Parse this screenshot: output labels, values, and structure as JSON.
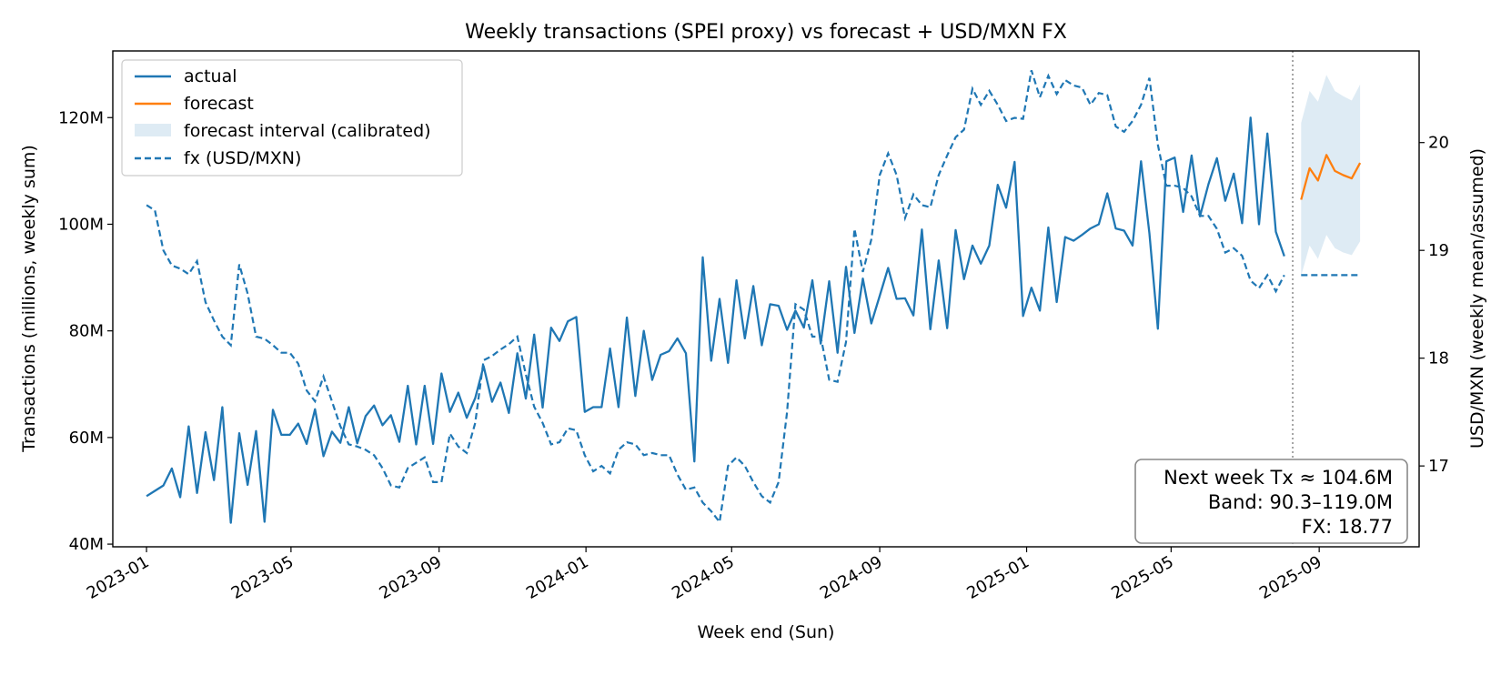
{
  "chart_data": {
    "type": "line",
    "title": "Weekly transactions (SPEI proxy) vs forecast + USD/MXN FX",
    "xlabel": "Week end (Sun)",
    "ylabel": "Transactions (millions, weekly sum)",
    "y2label": "USD/MXN (weekly mean/assumed)",
    "xlim": [
      "2022-12-04",
      "2025-11-23"
    ],
    "ylim": [
      39.5,
      132.5
    ],
    "y2lim": [
      16.25,
      20.85
    ],
    "x_ticks": [
      {
        "date": "2023-01-01",
        "label": "2023-01"
      },
      {
        "date": "2023-05-01",
        "label": "2023-05"
      },
      {
        "date": "2023-09-01",
        "label": "2023-09"
      },
      {
        "date": "2024-01-01",
        "label": "2024-01"
      },
      {
        "date": "2024-05-01",
        "label": "2024-05"
      },
      {
        "date": "2024-09-01",
        "label": "2024-09"
      },
      {
        "date": "2025-01-01",
        "label": "2025-01"
      },
      {
        "date": "2025-05-01",
        "label": "2025-05"
      },
      {
        "date": "2025-09-01",
        "label": "2025-09"
      }
    ],
    "y_ticks": [
      {
        "value": 40,
        "label": "40M"
      },
      {
        "value": 60,
        "label": "60M"
      },
      {
        "value": 80,
        "label": "80M"
      },
      {
        "value": 100,
        "label": "100M"
      },
      {
        "value": 120,
        "label": "120M"
      }
    ],
    "y2_ticks": [
      {
        "value": 17,
        "label": "17"
      },
      {
        "value": 18,
        "label": "18"
      },
      {
        "value": 19,
        "label": "19"
      },
      {
        "value": 20,
        "label": "20"
      }
    ],
    "legend": {
      "placement": "top-left",
      "entries": [
        {
          "label": "actual",
          "style": "line",
          "color": "#1f77b4"
        },
        {
          "label": "forecast",
          "style": "line",
          "color": "#ff7f0e"
        },
        {
          "label": "forecast interval (calibrated)",
          "style": "patch",
          "color": "#1f77b4"
        },
        {
          "label": "fx (USD/MXN)",
          "style": "dashed",
          "color": "#1f77b4"
        }
      ]
    },
    "forecast_start": "2025-08-10",
    "annotation": {
      "placement": "bottom-right",
      "lines": [
        "Next week Tx ≈ 104.6M",
        "Band: 90.3–119.0M",
        "FX: 18.77"
      ]
    },
    "colors": {
      "actual": "#1f77b4",
      "forecast": "#ff7f0e",
      "band": "#1f77b4",
      "fx": "#1f77b4"
    },
    "series": [
      {
        "name": "actual",
        "style": "solid",
        "axis": "left",
        "start": "2023-01-01",
        "step_days": 7,
        "values": [
          49.0,
          50.0,
          51.0,
          54.2,
          48.8,
          62.1,
          49.6,
          61.0,
          52.0,
          65.7,
          44.0,
          60.8,
          51.1,
          61.2,
          44.2,
          65.2,
          60.5,
          60.5,
          62.6,
          58.8,
          65.3,
          56.5,
          61.1,
          59.0,
          65.7,
          58.9,
          64.0,
          66.0,
          62.3,
          64.2,
          59.2,
          69.7,
          58.7,
          69.7,
          58.8,
          72.0,
          64.8,
          68.4,
          63.7,
          67.4,
          73.4,
          66.7,
          70.3,
          64.6,
          75.8,
          67.3,
          79.3,
          65.6,
          80.6,
          78.1,
          81.8,
          82.6,
          64.8,
          65.7,
          65.7,
          76.7,
          65.7,
          82.5,
          67.8,
          80.0,
          70.8,
          75.5,
          76.2,
          78.6,
          75.8,
          55.5,
          93.8,
          74.4,
          86.0,
          74.0,
          89.5,
          78.6,
          88.4,
          77.3,
          85.0,
          84.7,
          80.2,
          83.8,
          80.6,
          89.5,
          77.6,
          89.3,
          75.9,
          92.0,
          79.6,
          89.8,
          81.4,
          86.6,
          91.8,
          86.0,
          86.1,
          82.9,
          99.0,
          80.3,
          93.2,
          80.5,
          98.9,
          89.7,
          96.0,
          92.6,
          96.0,
          107.4,
          103.1,
          111.7,
          82.8,
          88.1,
          83.8,
          99.4,
          85.4,
          97.6,
          96.9,
          98.0,
          99.2,
          100.0,
          105.8,
          99.2,
          98.8,
          96.0,
          111.8,
          98.3,
          80.4,
          111.8,
          112.5,
          102.3,
          112.9,
          101.5,
          107.5,
          112.4,
          104.4,
          109.5,
          100.2,
          120.0,
          100.0,
          117.0,
          98.6,
          94.0
        ]
      },
      {
        "name": "fx (USD/MXN)",
        "style": "dashed",
        "axis": "right",
        "start": "2023-01-01",
        "step_days": 7,
        "values": [
          19.42,
          19.37,
          19.0,
          18.86,
          18.83,
          18.78,
          18.9,
          18.52,
          18.35,
          18.2,
          18.12,
          18.87,
          18.6,
          18.2,
          18.18,
          18.12,
          18.05,
          18.05,
          17.95,
          17.7,
          17.6,
          17.83,
          17.6,
          17.37,
          17.2,
          17.18,
          17.15,
          17.1,
          16.98,
          16.82,
          16.8,
          16.98,
          17.03,
          17.08,
          16.85,
          16.85,
          17.3,
          17.18,
          17.12,
          17.4,
          17.98,
          18.02,
          18.08,
          18.13,
          18.2,
          17.85,
          17.55,
          17.4,
          17.2,
          17.22,
          17.35,
          17.33,
          17.1,
          16.95,
          17.0,
          16.93,
          17.15,
          17.22,
          17.2,
          17.1,
          17.12,
          17.1,
          17.1,
          16.92,
          16.78,
          16.8,
          16.66,
          16.58,
          16.48,
          17.0,
          17.08,
          17.0,
          16.85,
          16.72,
          16.66,
          16.85,
          17.5,
          18.5,
          18.45,
          18.2,
          18.2,
          17.8,
          17.78,
          18.15,
          19.2,
          18.8,
          19.1,
          19.7,
          19.9,
          19.7,
          19.3,
          19.52,
          19.42,
          19.4,
          19.7,
          19.88,
          20.05,
          20.12,
          20.5,
          20.35,
          20.48,
          20.35,
          20.2,
          20.23,
          20.22,
          20.67,
          20.42,
          20.62,
          20.45,
          20.58,
          20.53,
          20.51,
          20.35,
          20.46,
          20.44,
          20.15,
          20.1,
          20.2,
          20.35,
          20.6,
          19.98,
          19.6,
          19.6,
          19.58,
          19.5,
          19.32,
          19.32,
          19.2,
          18.98,
          19.02,
          18.95,
          18.72,
          18.65,
          18.77,
          18.62,
          18.77
        ]
      },
      {
        "name": "forecast",
        "style": "solid",
        "axis": "left",
        "start": "2025-08-17",
        "step_days": 7,
        "values": [
          104.6,
          110.5,
          108.2,
          113.0,
          110.0,
          109.2,
          108.6,
          111.5
        ]
      },
      {
        "name": "forecast interval (calibrated)",
        "style": "band",
        "axis": "left",
        "start": "2025-08-17",
        "step_days": 7,
        "lower": [
          90.3,
          96.0,
          93.5,
          98.0,
          95.5,
          94.7,
          94.2,
          96.8
        ],
        "upper": [
          119.0,
          125.0,
          123.0,
          128.0,
          125.0,
          124.0,
          123.2,
          126.2
        ]
      },
      {
        "name": "fx assumed",
        "style": "dashed",
        "axis": "right",
        "start": "2025-08-17",
        "step_days": 7,
        "values": [
          18.77,
          18.77,
          18.77,
          18.77,
          18.77,
          18.77,
          18.77,
          18.77
        ]
      }
    ]
  }
}
